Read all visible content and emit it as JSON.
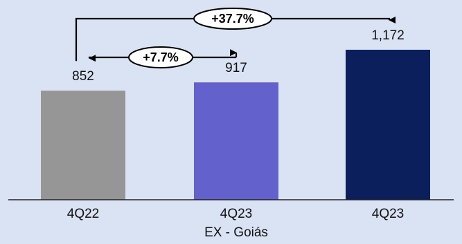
{
  "chart_data": {
    "type": "bar",
    "title": "",
    "xlabel": "",
    "ylabel": "",
    "categories": [
      "4Q22",
      "4Q23",
      "4Q23"
    ],
    "category_sublabels": [
      "",
      "EX - Goiás",
      ""
    ],
    "values": [
      852,
      917,
      1172
    ],
    "value_labels": [
      "852",
      "917",
      "1,172"
    ],
    "bar_colors": [
      "#969696",
      "#6361cc",
      "#0b1f5c"
    ],
    "ylim": [
      0,
      1350
    ],
    "grid": false,
    "legend": "none",
    "annotations": [
      {
        "text": "+7.7%",
        "from_category": 0,
        "to_category": 1
      },
      {
        "text": "+37.7%",
        "from_category": 0,
        "to_category": 2
      }
    ]
  }
}
